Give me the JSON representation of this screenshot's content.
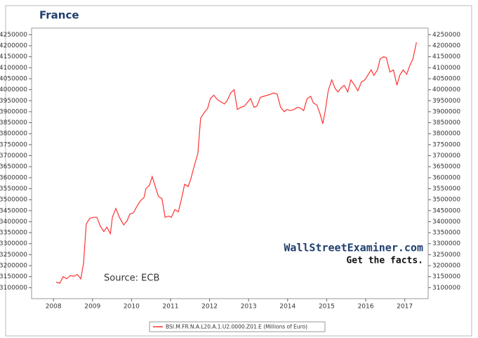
{
  "chart_data": {
    "type": "line",
    "title": "France",
    "annotations": [
      "Source: ECB",
      "WallStreetExaminer.com",
      "Get the facts."
    ],
    "xlim": [
      2007.44,
      2017.6
    ],
    "xticks": [
      2008,
      2009,
      2010,
      2011,
      2012,
      2013,
      2014,
      2015,
      2016,
      2017
    ],
    "ylim": [
      3050000,
      4280000
    ],
    "yticks": [
      3100000,
      3150000,
      3200000,
      3250000,
      3300000,
      3350000,
      3400000,
      3450000,
      3500000,
      3550000,
      3600000,
      3650000,
      3700000,
      3750000,
      3800000,
      3850000,
      3900000,
      3950000,
      4000000,
      4050000,
      4100000,
      4150000,
      4200000,
      4250000
    ],
    "grid": false,
    "legend": "bottom",
    "x": [
      2008.07,
      2008.16,
      2008.25,
      2008.34,
      2008.43,
      2008.52,
      2008.61,
      2008.7,
      2008.77,
      2008.84,
      2008.93,
      2009.02,
      2009.11,
      2009.2,
      2009.29,
      2009.37,
      2009.46,
      2009.51,
      2009.6,
      2009.69,
      2009.8,
      2009.89,
      2009.96,
      2010.05,
      2010.14,
      2010.23,
      2010.32,
      2010.37,
      2010.46,
      2010.53,
      2010.6,
      2010.69,
      2010.78,
      2010.86,
      2010.95,
      2011.02,
      2011.11,
      2011.2,
      2011.27,
      2011.36,
      2011.45,
      2011.52,
      2011.61,
      2011.7,
      2011.77,
      2011.86,
      2011.95,
      2012.02,
      2012.11,
      2012.2,
      2012.29,
      2012.38,
      2012.45,
      2012.54,
      2012.63,
      2012.71,
      2012.8,
      2012.89,
      2012.96,
      2013.05,
      2013.14,
      2013.21,
      2013.3,
      2013.39,
      2013.48,
      2013.57,
      2013.64,
      2013.73,
      2013.82,
      2013.91,
      2013.98,
      2014.07,
      2014.16,
      2014.25,
      2014.34,
      2014.41,
      2014.5,
      2014.59,
      2014.66,
      2014.75,
      2014.83,
      2014.9,
      2014.97,
      2015.04,
      2015.13,
      2015.22,
      2015.29,
      2015.38,
      2015.45,
      2015.54,
      2015.62,
      2015.7,
      2015.8,
      2015.89,
      2015.98,
      2016.05,
      2016.14,
      2016.21,
      2016.3,
      2016.37,
      2016.46,
      2016.53,
      2016.62,
      2016.71,
      2016.8,
      2016.87,
      2016.96,
      2017.05,
      2017.13,
      2017.21,
      2017.3
    ],
    "series": [
      {
        "name": "BSI.M.FR.N.A.L20.A.1.U2.0000.Z01.E (Millions of Euro)",
        "color": "#ff3333",
        "values": [
          3125000,
          3120000,
          3150000,
          3140000,
          3155000,
          3152000,
          3160000,
          3140000,
          3210000,
          3390000,
          3415000,
          3420000,
          3420000,
          3380000,
          3355000,
          3375000,
          3345000,
          3420000,
          3460000,
          3420000,
          3385000,
          3405000,
          3435000,
          3440000,
          3470000,
          3495000,
          3510000,
          3550000,
          3565000,
          3605000,
          3565000,
          3515000,
          3505000,
          3420000,
          3425000,
          3420000,
          3455000,
          3445000,
          3495000,
          3570000,
          3560000,
          3595000,
          3655000,
          3710000,
          3870000,
          3895000,
          3915000,
          3960000,
          3975000,
          3955000,
          3945000,
          3935000,
          3950000,
          3985000,
          4000000,
          3910000,
          3920000,
          3925000,
          3940000,
          3960000,
          3920000,
          3925000,
          3965000,
          3970000,
          3975000,
          3980000,
          3985000,
          3980000,
          3920000,
          3900000,
          3910000,
          3905000,
          3910000,
          3920000,
          3915000,
          3905000,
          3960000,
          3970000,
          3940000,
          3930000,
          3890000,
          3845000,
          3910000,
          3995000,
          4045000,
          4005000,
          3990000,
          4010000,
          4020000,
          3990000,
          4045000,
          4025000,
          3995000,
          4035000,
          4045000,
          4065000,
          4090000,
          4065000,
          4090000,
          4140000,
          4150000,
          4145000,
          4080000,
          4090000,
          4020000,
          4065000,
          4090000,
          4070000,
          4110000,
          4140000,
          4215000
        ]
      }
    ]
  }
}
